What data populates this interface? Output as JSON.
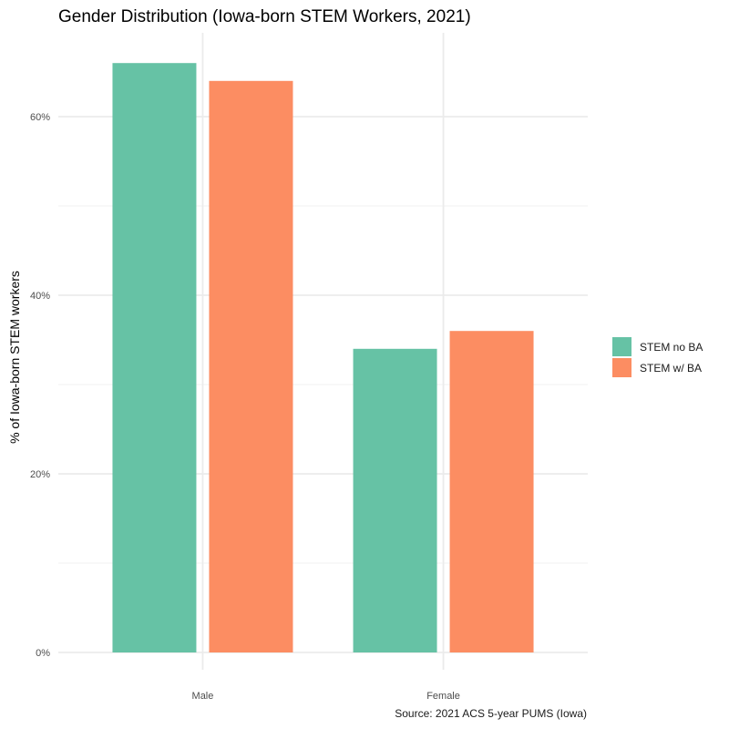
{
  "chart_data": {
    "type": "bar",
    "title": "Gender Distribution (Iowa-born STEM Workers, 2021)",
    "xlabel": "",
    "ylabel": "% of Iowa-born STEM workers",
    "caption": "Source: 2021 ACS 5-year PUMS (Iowa)",
    "categories": [
      "Male",
      "Female"
    ],
    "series": [
      {
        "name": "STEM no BA",
        "color": "#66C2A5",
        "values": [
          66,
          34
        ]
      },
      {
        "name": "STEM w/ BA",
        "color": "#FC8D62",
        "values": [
          64,
          36
        ]
      }
    ],
    "ylim": [
      0,
      68
    ],
    "y_ticks": [
      {
        "value": 0,
        "label": "0%"
      },
      {
        "value": 20,
        "label": "20%"
      },
      {
        "value": 40,
        "label": "40%"
      },
      {
        "value": 60,
        "label": "60%"
      }
    ],
    "y_minor_ticks": [
      10,
      30,
      50
    ],
    "grid": true,
    "legend_position": "right"
  }
}
